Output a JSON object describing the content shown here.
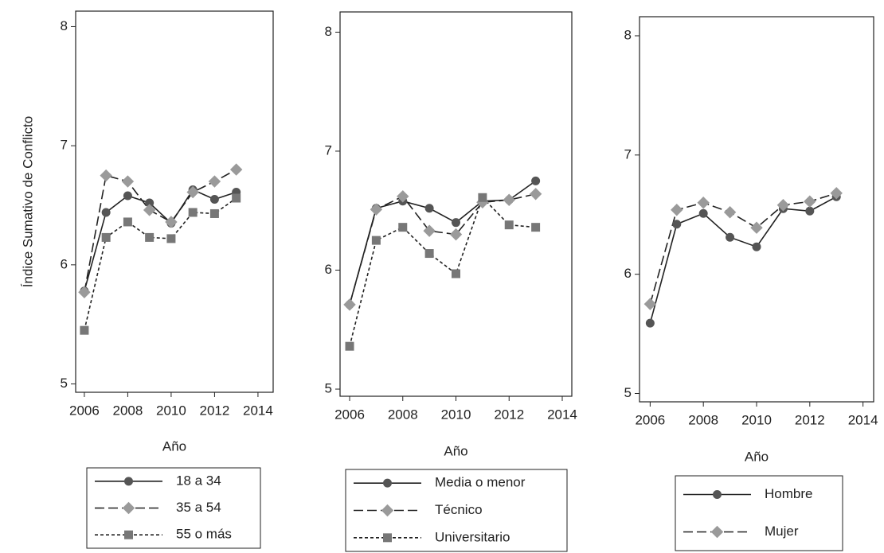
{
  "chart_data": [
    {
      "type": "line",
      "ylabel": "Índice Sumativo de Conflicto",
      "xlabel": "Año",
      "x": [
        2006,
        2007,
        2008,
        2009,
        2010,
        2011,
        2012,
        2013
      ],
      "xlim": [
        2005.6,
        2014.7
      ],
      "xticks": [
        2006,
        2008,
        2010,
        2012,
        2014
      ],
      "ylim": [
        4.93,
        8.13
      ],
      "yticks": [
        5,
        6,
        7,
        8
      ],
      "series": [
        {
          "name": "18 a 34",
          "color": "#555555",
          "marker": "circle",
          "dash": "solid",
          "values": [
            5.78,
            6.44,
            6.58,
            6.52,
            6.35,
            6.63,
            6.55,
            6.61
          ]
        },
        {
          "name": "35 a 54",
          "color": "#9a9a9a",
          "marker": "diamond",
          "dash": "dashed",
          "values": [
            5.77,
            6.75,
            6.7,
            6.46,
            6.36,
            6.61,
            6.7,
            6.8
          ]
        },
        {
          "name": "55 o más",
          "color": "#777777",
          "marker": "square",
          "dash": "dotted",
          "values": [
            5.45,
            6.23,
            6.36,
            6.23,
            6.22,
            6.44,
            6.43,
            6.56
          ]
        }
      ]
    },
    {
      "type": "line",
      "xlabel": "Año",
      "x": [
        2006,
        2007,
        2008,
        2009,
        2010,
        2011,
        2012,
        2013
      ],
      "xlim": [
        2005.64,
        2014.36
      ],
      "xticks": [
        2006,
        2008,
        2010,
        2012,
        2014
      ],
      "ylim": [
        4.94,
        8.17
      ],
      "yticks": [
        5,
        6,
        7,
        8
      ],
      "series": [
        {
          "name": "Media o menor",
          "color": "#555555",
          "marker": "circle",
          "dash": "solid",
          "values": [
            5.71,
            6.52,
            6.58,
            6.52,
            6.4,
            6.58,
            6.59,
            6.75
          ]
        },
        {
          "name": "Técnico",
          "color": "#9a9a9a",
          "marker": "diamond",
          "dash": "dashed",
          "values": [
            5.71,
            6.51,
            6.62,
            6.33,
            6.3,
            6.57,
            6.59,
            6.64
          ]
        },
        {
          "name": "Universitario",
          "color": "#777777",
          "marker": "square",
          "dash": "dotted",
          "values": [
            5.36,
            6.25,
            6.36,
            6.14,
            5.97,
            6.61,
            6.38,
            6.36
          ]
        }
      ]
    },
    {
      "type": "line",
      "xlabel": "Año",
      "x": [
        2006,
        2007,
        2008,
        2009,
        2010,
        2011,
        2012,
        2013
      ],
      "xlim": [
        2005.6,
        2014.4
      ],
      "xticks": [
        2006,
        2008,
        2010,
        2012,
        2014
      ],
      "ylim": [
        4.93,
        8.16
      ],
      "yticks": [
        5,
        6,
        7,
        8
      ],
      "series": [
        {
          "name": "Hombre",
          "color": "#555555",
          "marker": "circle",
          "dash": "solid",
          "values": [
            5.59,
            6.42,
            6.51,
            6.31,
            6.23,
            6.55,
            6.53,
            6.65
          ]
        },
        {
          "name": "Mujer",
          "color": "#9a9a9a",
          "marker": "diamond",
          "dash": "dashed",
          "values": [
            5.75,
            6.54,
            6.6,
            6.52,
            6.39,
            6.58,
            6.61,
            6.68
          ]
        }
      ]
    }
  ]
}
